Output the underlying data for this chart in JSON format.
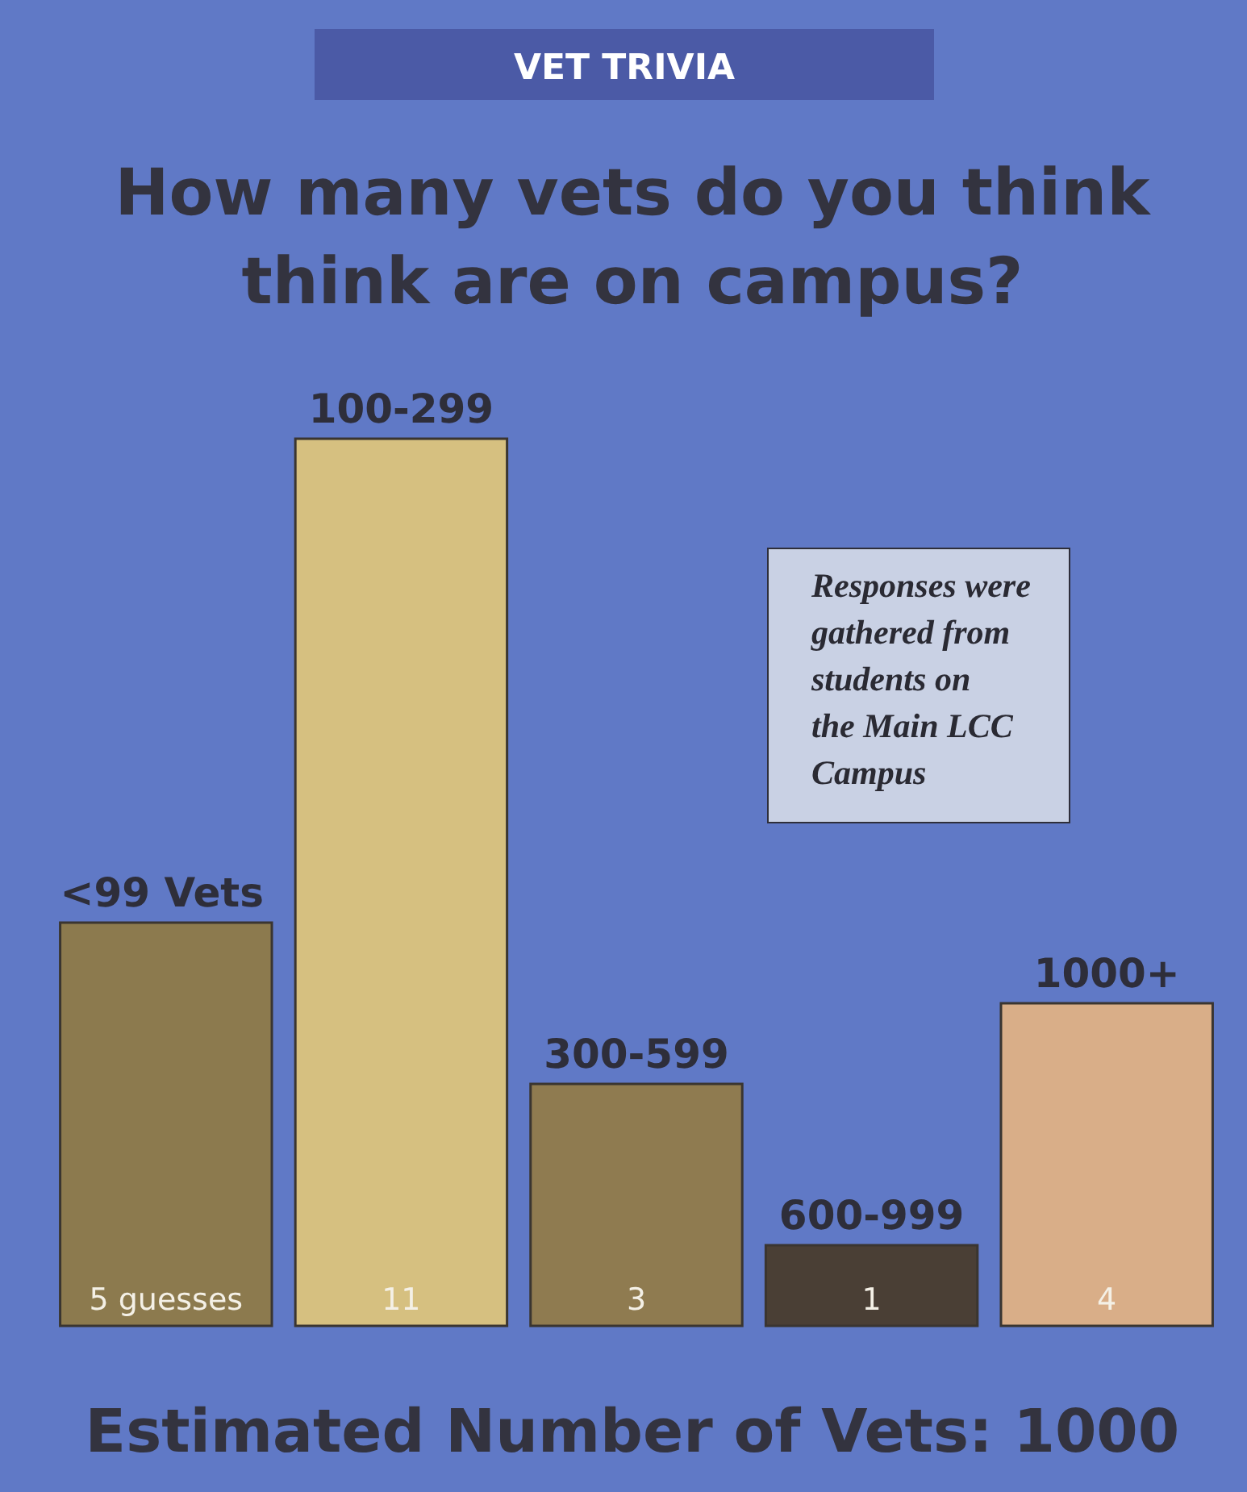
{
  "chart_data": {
    "type": "bar",
    "subtitle": "VET TRIVIA",
    "title": "How many vets do you think think are on campus?",
    "xlabel": "Estimated Number of Vets: 1000",
    "categories": [
      "<99 Vets",
      "100-299",
      "300-599",
      "600-999",
      "1000+"
    ],
    "values": [
      5,
      11,
      3,
      1,
      4
    ],
    "value_labels": [
      "5 guesses",
      "11",
      "3",
      "1",
      "4"
    ],
    "colors": [
      "#8c7a4e",
      "#d6c080",
      "#8f7b50",
      "#4a3f35",
      "#d9ae88"
    ],
    "annotations": [
      "Responses were gathered from students on the Main LCC Campus"
    ]
  }
}
